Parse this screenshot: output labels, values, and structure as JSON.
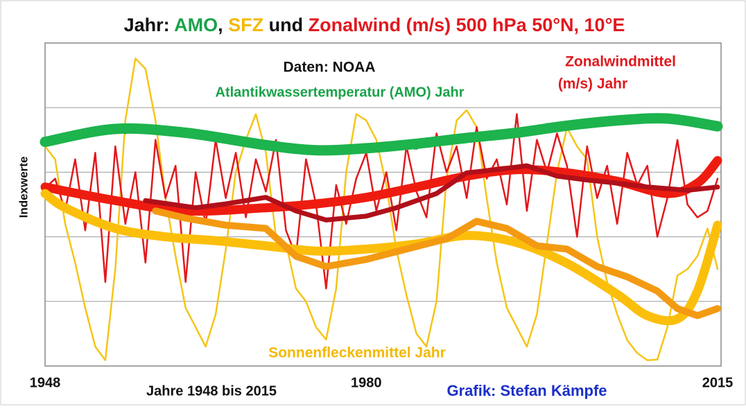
{
  "chart_data": {
    "type": "line",
    "title_parts": [
      {
        "text": "Jahr: ",
        "color": "#111111"
      },
      {
        "text": "AMO",
        "color": "#1aa34a"
      },
      {
        "text": ", ",
        "color": "#111111"
      },
      {
        "text": "SFZ",
        "color": "#f5b800"
      },
      {
        "text": " und ",
        "color": "#111111"
      },
      {
        "text": "Zonalwind (m/s) 500 hPa 50°N, 10°E",
        "color": "#e0191f"
      }
    ],
    "y_label": "Indexwerte",
    "x_label": "Jahre 1948 bis 2015",
    "credit": {
      "text": "Grafik: Stefan Kämpfe",
      "color": "#1a2fc8"
    },
    "annotations": [
      {
        "text": "Daten: NOAA",
        "color": "#111111"
      },
      {
        "text": "Atlantikwassertemperatur (AMO) Jahr",
        "color": "#1aa34a"
      },
      {
        "text": "Zonalwindmittel",
        "color": "#e0191f"
      },
      {
        "text": "(m/s) Jahr",
        "color": "#e0191f"
      },
      {
        "text": "Sonnenfleckenmittel  Jahr",
        "color": "#f5b800"
      }
    ],
    "xlim": [
      1948,
      2015
    ],
    "xticks": [
      1948,
      1980,
      2015
    ],
    "ylim": [
      0,
      5
    ],
    "yticks": [
      1,
      2,
      3,
      4
    ],
    "ytick_labels_shown": false,
    "grid": true,
    "x": [
      1948,
      1949,
      1950,
      1951,
      1952,
      1953,
      1954,
      1955,
      1956,
      1957,
      1958,
      1959,
      1960,
      1961,
      1962,
      1963,
      1964,
      1965,
      1966,
      1967,
      1968,
      1969,
      1970,
      1971,
      1972,
      1973,
      1974,
      1975,
      1976,
      1977,
      1978,
      1979,
      1980,
      1981,
      1982,
      1983,
      1984,
      1985,
      1986,
      1987,
      1988,
      1989,
      1990,
      1991,
      1992,
      1993,
      1994,
      1995,
      1996,
      1997,
      1998,
      1999,
      2000,
      2001,
      2002,
      2003,
      2004,
      2005,
      2006,
      2007,
      2008,
      2009,
      2010,
      2011,
      2012,
      2013,
      2014,
      2015
    ],
    "series": [
      {
        "color": "#f5c518",
        "line_width": 2.5,
        "values": [
          3.4,
          3.2,
          2.2,
          1.6,
          0.9,
          0.3,
          0.09,
          1.5,
          3.8,
          4.76,
          4.6,
          3.8,
          2.6,
          1.7,
          0.9,
          0.6,
          0.3,
          0.8,
          1.8,
          3.0,
          3.5,
          3.9,
          3.3,
          2.0,
          1.9,
          1.2,
          1.0,
          0.6,
          0.41,
          1.2,
          3.0,
          3.9,
          3.8,
          3.5,
          2.8,
          1.8,
          1.1,
          0.5,
          0.3,
          1.0,
          2.9,
          3.8,
          3.96,
          3.7,
          2.6,
          1.6,
          0.9,
          0.6,
          0.3,
          0.8,
          1.9,
          3.0,
          3.69,
          3.4,
          3.2,
          2.0,
          1.3,
          0.8,
          0.4,
          0.2,
          0.09,
          0.1,
          0.6,
          1.4,
          1.5,
          1.7,
          2.13,
          1.5
        ]
      },
      {
        "color": "#e3181b",
        "line_width": 2.5,
        "values": [
          2.75,
          2.9,
          2.4,
          3.2,
          2.1,
          3.3,
          1.3,
          3.4,
          2.2,
          3.0,
          1.6,
          3.5,
          2.6,
          3.1,
          1.3,
          3.0,
          2.2,
          3.5,
          2.6,
          3.3,
          2.3,
          3.2,
          2.7,
          3.5,
          2.1,
          1.7,
          3.2,
          2.5,
          1.2,
          2.8,
          2.2,
          2.9,
          3.3,
          2.4,
          3.0,
          2.1,
          3.4,
          2.7,
          2.3,
          3.6,
          3.0,
          3.4,
          2.6,
          3.7,
          2.9,
          3.2,
          2.5,
          3.9,
          2.4,
          3.5,
          3.0,
          3.6,
          3.1,
          2.0,
          3.4,
          2.6,
          3.1,
          2.2,
          3.3,
          2.8,
          3.1,
          2.0,
          2.6,
          3.5,
          2.5,
          2.3,
          2.4,
          2.9
        ]
      },
      {
        "color": "#2aa84a",
        "line_width": 2.5,
        "values": [
          3.45,
          3.55,
          3.6,
          3.62,
          3.65,
          3.7,
          3.62,
          3.68,
          3.6,
          3.66,
          3.7,
          3.63,
          3.65,
          3.6,
          3.62,
          3.58,
          3.55,
          3.5,
          3.52,
          3.45,
          3.42,
          3.45,
          3.38,
          3.35,
          3.37,
          3.3,
          3.33,
          3.28,
          3.3,
          3.35,
          3.33,
          3.36,
          3.38,
          3.35,
          3.4,
          3.42,
          3.38,
          3.36,
          3.45,
          3.48,
          3.5,
          3.47,
          3.55,
          3.52,
          3.5,
          3.55,
          3.6,
          3.62,
          3.58,
          3.65,
          3.75,
          3.7,
          3.72,
          3.75,
          3.78,
          3.8,
          3.76,
          3.85,
          3.82,
          3.8,
          3.83,
          3.86,
          3.9,
          3.82,
          3.86,
          3.8,
          3.76,
          3.72
        ]
      },
      {
        "color": "#1db34d",
        "line_width": 15,
        "smooth": true,
        "x": [
          1948,
          1955,
          1962,
          1970,
          1975,
          1980,
          1985,
          1990,
          1995,
          2000,
          2005,
          2010,
          2015
        ],
        "values": [
          3.47,
          3.67,
          3.61,
          3.42,
          3.34,
          3.37,
          3.44,
          3.53,
          3.61,
          3.72,
          3.8,
          3.83,
          3.71
        ]
      },
      {
        "color": "#ee1c10",
        "line_width": 13,
        "smooth": true,
        "x": [
          1948,
          1955,
          1962,
          1970,
          1975,
          1980,
          1985,
          1990,
          1995,
          2000,
          2005,
          2010,
          2013,
          2015
        ],
        "values": [
          2.77,
          2.56,
          2.4,
          2.45,
          2.51,
          2.61,
          2.77,
          2.94,
          3.04,
          2.99,
          2.86,
          2.67,
          2.83,
          3.18
        ]
      },
      {
        "color": "#b0101a",
        "line_width": 7,
        "x": [
          1958,
          1963,
          1966,
          1970,
          1973,
          1976,
          1980,
          1983,
          1987,
          1990,
          1993,
          1996,
          1999,
          2002,
          2005,
          2008,
          2012,
          2015
        ],
        "values": [
          2.56,
          2.45,
          2.51,
          2.61,
          2.4,
          2.26,
          2.32,
          2.45,
          2.67,
          2.99,
          3.04,
          3.1,
          2.94,
          2.88,
          2.83,
          2.77,
          2.72,
          2.77
        ]
      },
      {
        "color": "#fbbf0b",
        "line_width": 13,
        "smooth": true,
        "x": [
          1948,
          1950,
          1955,
          1960,
          1965,
          1970,
          1975,
          1980,
          1985,
          1990,
          1995,
          2000,
          2005,
          2008,
          2011,
          2013,
          2015
        ],
        "values": [
          2.67,
          2.45,
          2.13,
          2.0,
          1.94,
          1.86,
          1.78,
          1.81,
          1.89,
          2.02,
          1.91,
          1.59,
          1.11,
          0.78,
          0.73,
          1.16,
          2.18
        ]
      },
      {
        "color": "#f39a12",
        "line_width": 10,
        "x": [
          1959,
          1962,
          1966,
          1970,
          1973,
          1976,
          1980,
          1984,
          1988,
          1991,
          1994,
          1997,
          2000,
          2003,
          2006,
          2009,
          2011,
          2013,
          2015
        ],
        "values": [
          2.4,
          2.29,
          2.18,
          2.13,
          1.7,
          1.54,
          1.65,
          1.81,
          1.97,
          2.24,
          2.13,
          1.86,
          1.81,
          1.54,
          1.38,
          1.16,
          0.89,
          0.78,
          0.89
        ]
      }
    ]
  }
}
